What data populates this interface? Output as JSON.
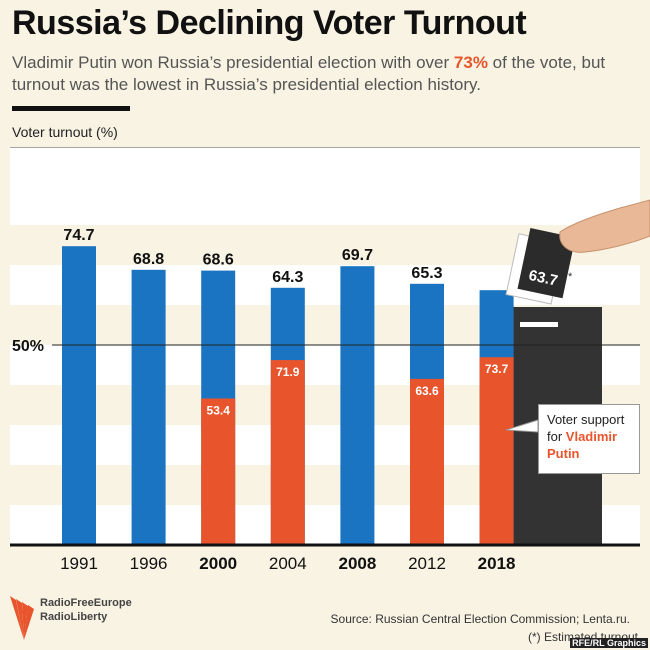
{
  "title": "Russia’s Declining Voter Turnout",
  "subtitle": {
    "part1": "Vladimir Putin won Russia’s presidential election with over ",
    "highlight": "73%",
    "part2": " of the vote, but turnout was the lowest in Russia’s presidential election history."
  },
  "y_axis_label": "Voter turnout (%)",
  "reference_line_label": "50%",
  "callout": {
    "line1": "Voter support",
    "line2": "for ",
    "name": "Vladimir Putin"
  },
  "ballot_label": "63.7",
  "ballot_note_mark": "*",
  "logo": {
    "line1": "RadioFreeEurope",
    "line2": "RadioLiberty"
  },
  "source": "Source: Russian Central Election Commission; Lenta.ru.",
  "note": "(*) Estimated turnout",
  "credit": "RFE/RL Graphics",
  "colors": {
    "turnout": "#1a74c2",
    "putin_support": "#e8552d",
    "ballot_box": "#333333",
    "background": "#f8f3e3",
    "band": "#ffffff"
  },
  "chart_data": {
    "type": "bar",
    "title": "Russia’s Declining Voter Turnout",
    "ylabel": "Voter turnout (%)",
    "ylim": [
      0,
      100
    ],
    "reference_line": 50,
    "categories": [
      "1991",
      "1996",
      "2000",
      "2004",
      "2008",
      "2012",
      "2018"
    ],
    "series": [
      {
        "name": "Voter turnout",
        "values": [
          74.7,
          68.8,
          68.6,
          64.3,
          69.7,
          65.3,
          63.7
        ]
      },
      {
        "name": "Voter support for Vladimir Putin",
        "values": [
          null,
          null,
          53.4,
          71.9,
          null,
          63.6,
          73.7
        ]
      }
    ]
  }
}
